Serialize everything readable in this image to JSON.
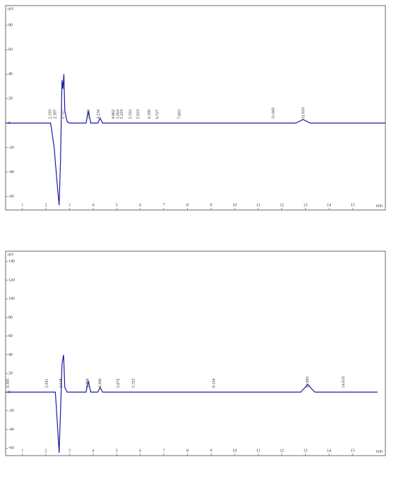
{
  "chart_data": [
    {
      "type": "line",
      "xlabel": "min",
      "ylabel": "mV",
      "xlim": [
        0.29,
        16.39
      ],
      "ylim": [
        -71,
        96
      ],
      "xticks": [
        1,
        2,
        3,
        4,
        5,
        6,
        7,
        8,
        9,
        10,
        11,
        12,
        13,
        14,
        15
      ],
      "yticks": [
        -60,
        -40,
        -20,
        0,
        20,
        40,
        60,
        80
      ],
      "series": [
        {
          "name": "trace",
          "color": "#1a1aa0",
          "x": [
            0.29,
            2.0,
            2.2,
            2.35,
            2.5,
            2.56,
            2.62,
            2.68,
            2.72,
            2.76,
            2.8,
            2.9,
            3.0,
            3.7,
            3.8,
            3.9,
            4.2,
            4.3,
            4.4,
            12.6,
            12.9,
            13.2,
            16.39
          ],
          "values": [
            0,
            0,
            0,
            -20,
            -55,
            -67,
            -30,
            35,
            28,
            40,
            10,
            1,
            0,
            0,
            10,
            0,
            0,
            4,
            0,
            0,
            3,
            0,
            0
          ]
        }
      ],
      "annotations": [
        "2.193",
        "2.397",
        "2.727",
        "3.819",
        "4.234",
        "4.862",
        "5.064",
        "5.219",
        "5.593",
        "5.919",
        "6.390",
        "6.727",
        "7.663",
        "11.643",
        "12.910"
      ]
    },
    {
      "type": "line",
      "xlabel": "min",
      "ylabel": "mV",
      "xlim": [
        0.29,
        16.39
      ],
      "ylim": [
        -68,
        151
      ],
      "xticks": [
        1,
        2,
        3,
        4,
        5,
        6,
        7,
        8,
        9,
        10,
        11,
        12,
        13,
        14,
        15
      ],
      "yticks": [
        -60,
        -40,
        -20,
        0,
        20,
        40,
        60,
        80,
        100,
        120,
        140
      ],
      "series": [
        {
          "name": "trace",
          "color": "#1a1aa0",
          "x": [
            0.29,
            2.4,
            2.5,
            2.56,
            2.62,
            2.68,
            2.75,
            2.8,
            2.9,
            3.7,
            3.8,
            3.9,
            4.2,
            4.3,
            4.4,
            12.8,
            13.1,
            13.4,
            16.06
          ],
          "values": [
            0,
            0,
            -40,
            -65,
            -20,
            30,
            40,
            5,
            0,
            0,
            12,
            0,
            0,
            5,
            0,
            0,
            8,
            0,
            0
          ]
        }
      ],
      "annotations": [
        "0.395",
        "2.041",
        "2.648",
        "3.768",
        "4.300",
        "5.072",
        "5.723",
        "9.124",
        "13.093",
        "14.619"
      ]
    }
  ]
}
